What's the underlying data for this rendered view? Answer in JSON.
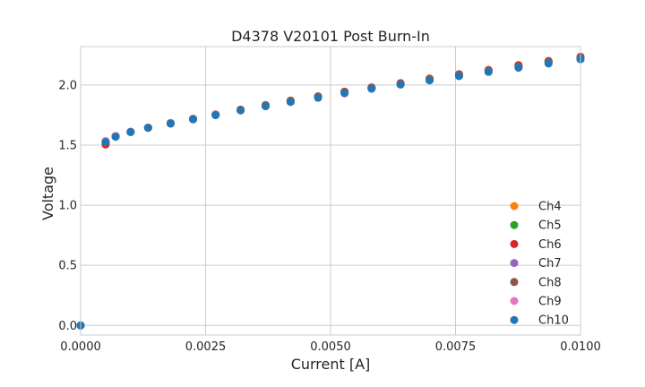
{
  "chart_data": {
    "type": "scatter",
    "title": "D4378 V20101 Post Burn-In",
    "xlabel": "Current [A]",
    "ylabel": "Voltage",
    "xlim": [
      0,
      0.01
    ],
    "ylim": [
      -0.08,
      2.32
    ],
    "xticks": [
      0,
      0.0025,
      0.005,
      0.0075,
      0.01
    ],
    "xtick_labels": [
      "0.0000",
      "0.0025",
      "0.0050",
      "0.0075",
      "0.0100"
    ],
    "yticks": [
      0,
      0.5,
      1.0,
      1.5,
      2.0
    ],
    "ytick_labels": [
      "0.0",
      "0.5",
      "1.0",
      "1.5",
      "2.0"
    ],
    "grid": true,
    "legend_position": "lower-right",
    "x": [
      0,
      0.0005,
      0.0007,
      0.001,
      0.00135,
      0.0018,
      0.00225,
      0.0027,
      0.0032,
      0.0037,
      0.0042,
      0.00475,
      0.00528,
      0.00582,
      0.0064,
      0.00698,
      0.00757,
      0.00816,
      0.00876,
      0.00936,
      0.01
    ],
    "series": [
      {
        "name": "Ch4",
        "color": "#ff7f0e",
        "values": [
          0,
          1.53,
          1.575,
          1.61,
          1.645,
          1.685,
          1.72,
          1.755,
          1.795,
          1.835,
          1.87,
          1.905,
          1.945,
          1.98,
          2.015,
          2.055,
          2.09,
          2.125,
          2.165,
          2.2,
          2.235
        ]
      },
      {
        "name": "Ch5",
        "color": "#2ca02c",
        "values": [
          0,
          1.52,
          1.575,
          1.61,
          1.645,
          1.68,
          1.72,
          1.755,
          1.795,
          1.83,
          1.87,
          1.905,
          1.94,
          1.975,
          2.01,
          2.05,
          2.085,
          2.12,
          2.16,
          2.195,
          2.23
        ]
      },
      {
        "name": "Ch6",
        "color": "#d62728",
        "values": [
          0,
          1.505,
          1.575,
          1.61,
          1.645,
          1.68,
          1.72,
          1.755,
          1.795,
          1.83,
          1.87,
          1.905,
          1.945,
          1.98,
          2.015,
          2.05,
          2.09,
          2.125,
          2.165,
          2.2,
          2.235
        ]
      },
      {
        "name": "Ch7",
        "color": "#9467bd",
        "values": [
          0,
          1.525,
          1.57,
          1.61,
          1.645,
          1.68,
          1.715,
          1.75,
          1.79,
          1.825,
          1.86,
          1.895,
          1.935,
          1.97,
          2.005,
          2.04,
          2.075,
          2.11,
          2.145,
          2.18,
          2.215
        ]
      },
      {
        "name": "Ch8",
        "color": "#8c564b",
        "values": [
          0,
          1.525,
          1.575,
          1.61,
          1.645,
          1.68,
          1.72,
          1.755,
          1.79,
          1.83,
          1.865,
          1.9,
          1.94,
          1.975,
          2.01,
          2.045,
          2.085,
          2.12,
          2.155,
          2.195,
          2.23
        ]
      },
      {
        "name": "Ch9",
        "color": "#e377c2",
        "values": [
          0,
          1.535,
          1.575,
          1.61,
          1.645,
          1.68,
          1.72,
          1.755,
          1.79,
          1.825,
          1.86,
          1.895,
          1.93,
          1.97,
          2.005,
          2.04,
          2.075,
          2.11,
          2.145,
          2.18,
          2.215
        ]
      },
      {
        "name": "Ch10",
        "color": "#1f77b4",
        "values": [
          0,
          1.525,
          1.57,
          1.61,
          1.645,
          1.68,
          1.715,
          1.75,
          1.79,
          1.825,
          1.86,
          1.895,
          1.935,
          1.97,
          2.005,
          2.04,
          2.075,
          2.11,
          2.145,
          2.18,
          2.215
        ]
      }
    ]
  }
}
